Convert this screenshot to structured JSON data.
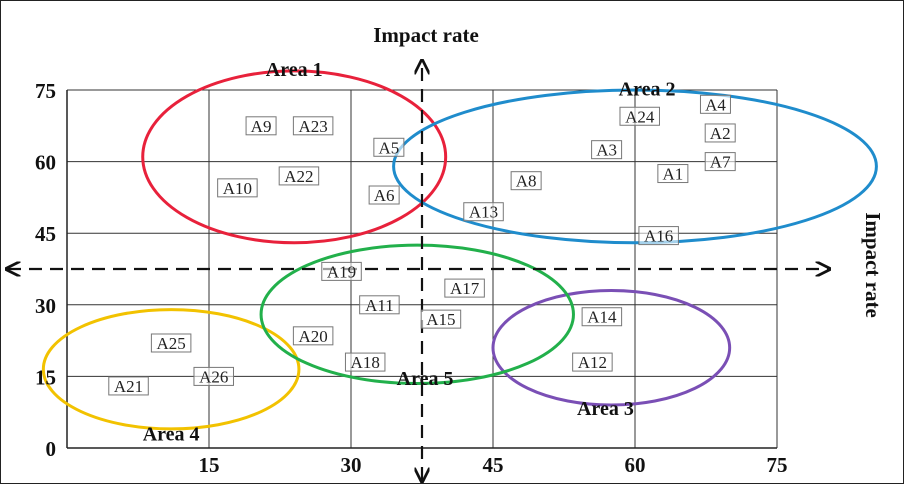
{
  "chart_data": {
    "type": "scatter",
    "xlabel": "Impact rate",
    "ylabel": "Impact rate",
    "xlim": [
      0,
      75
    ],
    "ylim": [
      0,
      75
    ],
    "x_ticks": [
      "0",
      "15",
      "30",
      "45",
      "60",
      "75"
    ],
    "y_ticks": [
      "0",
      "15",
      "30",
      "45",
      "60",
      "75"
    ],
    "grid": true,
    "axis_divider": {
      "x": 37.5,
      "y": 37.5
    },
    "points": [
      {
        "label": "A1",
        "x": 64,
        "y": 57.5
      },
      {
        "label": "A2",
        "x": 69,
        "y": 66
      },
      {
        "label": "A3",
        "x": 57,
        "y": 62.5
      },
      {
        "label": "A4",
        "x": 68.5,
        "y": 72
      },
      {
        "label": "A5",
        "x": 34,
        "y": 63
      },
      {
        "label": "A6",
        "x": 33.5,
        "y": 53
      },
      {
        "label": "A7",
        "x": 69,
        "y": 60
      },
      {
        "label": "A8",
        "x": 48.5,
        "y": 56
      },
      {
        "label": "A9",
        "x": 20.5,
        "y": 67.5
      },
      {
        "label": "A10",
        "x": 18,
        "y": 54.5
      },
      {
        "label": "A11",
        "x": 33,
        "y": 30
      },
      {
        "label": "A12",
        "x": 55.5,
        "y": 18
      },
      {
        "label": "A13",
        "x": 44,
        "y": 49.5
      },
      {
        "label": "A14",
        "x": 56.5,
        "y": 27.5
      },
      {
        "label": "A15",
        "x": 39.5,
        "y": 27
      },
      {
        "label": "A16",
        "x": 62.5,
        "y": 44.5
      },
      {
        "label": "A17",
        "x": 42,
        "y": 33.5
      },
      {
        "label": "A18",
        "x": 31.5,
        "y": 18
      },
      {
        "label": "A19",
        "x": 29,
        "y": 37
      },
      {
        "label": "A20",
        "x": 26,
        "y": 23.5
      },
      {
        "label": "A21",
        "x": 6.5,
        "y": 13
      },
      {
        "label": "A22",
        "x": 24.5,
        "y": 57
      },
      {
        "label": "A23",
        "x": 26,
        "y": 67.5
      },
      {
        "label": "A24",
        "x": 60.5,
        "y": 69.5
      },
      {
        "label": "A25",
        "x": 11,
        "y": 22
      },
      {
        "label": "A26",
        "x": 15.5,
        "y": 15
      }
    ],
    "areas": [
      {
        "name": "Area 1",
        "color": "#e8213b",
        "cx": 24,
        "cy": 61,
        "rx": 16,
        "ry": 18
      },
      {
        "name": "Area 2",
        "color": "#1f8ccc",
        "cx": 60,
        "cy": 59,
        "rx": 25.5,
        "ry": 16
      },
      {
        "name": "Area 3",
        "color": "#7a4fb5",
        "cx": 57.5,
        "cy": 21,
        "rx": 12.5,
        "ry": 12
      },
      {
        "name": "Area 4",
        "color": "#f2c200",
        "cx": 11,
        "cy": 16.5,
        "rx": 13.5,
        "ry": 12.5
      },
      {
        "name": "Area 5",
        "color": "#22b04b",
        "cx": 37,
        "cy": 28,
        "rx": 16.5,
        "ry": 14.5
      }
    ]
  }
}
